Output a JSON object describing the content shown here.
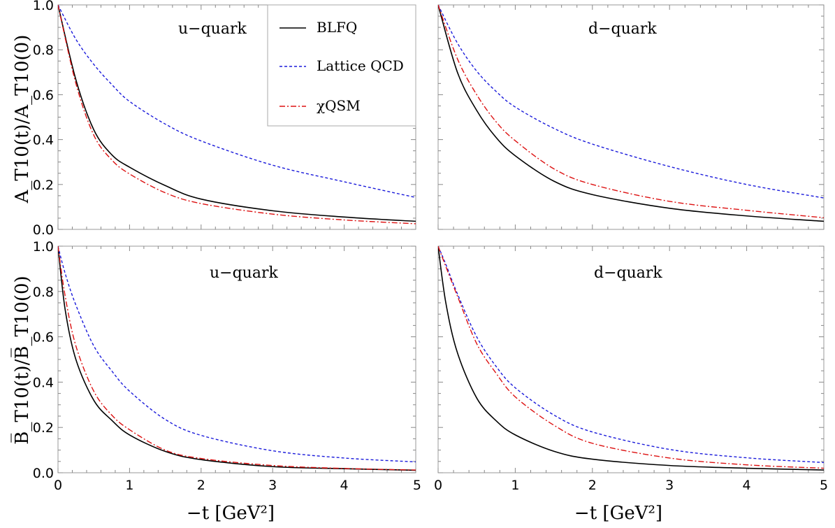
{
  "chart_data": [
    {
      "type": "line",
      "panel": "top-left",
      "annotation": "u−quark",
      "ylabel": "A_T10(t)/A_T10(0)",
      "xlim": [
        0,
        5
      ],
      "ylim": [
        0,
        1.0
      ],
      "yticks": [
        "0.0",
        "0.2",
        "0.4",
        "0.6",
        "0.8",
        "1.0"
      ],
      "xticks": [],
      "series": [
        {
          "name": "BLFQ",
          "x": [
            0,
            0.25,
            0.5,
            0.75,
            1.0,
            1.5,
            2.0,
            3.0,
            4.0,
            5.0
          ],
          "values": [
            1.0,
            0.667,
            0.444,
            0.333,
            0.277,
            0.195,
            0.135,
            0.083,
            0.055,
            0.036
          ]
        },
        {
          "name": "Lattice QCD",
          "x": [
            0,
            0.25,
            0.5,
            0.75,
            1.0,
            1.5,
            2.0,
            3.0,
            4.0,
            5.0
          ],
          "values": [
            1.0,
            0.847,
            0.735,
            0.646,
            0.57,
            0.469,
            0.394,
            0.286,
            0.212,
            0.142
          ]
        },
        {
          "name": "χQSM",
          "x": [
            0,
            0.25,
            0.5,
            0.75,
            1.0,
            1.5,
            2.0,
            3.0,
            4.0,
            5.0
          ],
          "values": [
            1.0,
            0.65,
            0.42,
            0.31,
            0.247,
            0.163,
            0.115,
            0.068,
            0.042,
            0.025
          ]
        }
      ]
    },
    {
      "type": "line",
      "panel": "top-right",
      "annotation": "d−quark",
      "xlim": [
        0,
        5
      ],
      "ylim": [
        0,
        1.0
      ],
      "yticks": [],
      "xticks": [],
      "series": [
        {
          "name": "BLFQ",
          "x": [
            0,
            0.25,
            0.5,
            0.75,
            1.0,
            1.5,
            2.0,
            3.0,
            4.0,
            5.0
          ],
          "values": [
            1.0,
            0.7,
            0.53,
            0.41,
            0.328,
            0.215,
            0.155,
            0.094,
            0.06,
            0.036
          ]
        },
        {
          "name": "Lattice QCD",
          "x": [
            0,
            0.25,
            0.5,
            0.75,
            1.0,
            1.5,
            2.0,
            3.0,
            4.0,
            5.0
          ],
          "values": [
            1.0,
            0.83,
            0.705,
            0.615,
            0.545,
            0.45,
            0.38,
            0.28,
            0.2,
            0.14
          ]
        },
        {
          "name": "χQSM",
          "x": [
            0,
            0.25,
            0.5,
            0.75,
            1.0,
            1.5,
            2.0,
            3.0,
            4.0,
            5.0
          ],
          "values": [
            1.0,
            0.76,
            0.6,
            0.48,
            0.395,
            0.27,
            0.2,
            0.125,
            0.085,
            0.052
          ]
        }
      ]
    },
    {
      "type": "line",
      "panel": "bottom-left",
      "annotation": "u−quark",
      "ylabel": "B̅_T10(t)/B̅_T10(0)",
      "xlabel": "−t [GeV²]",
      "xlim": [
        0,
        5
      ],
      "ylim": [
        0,
        1.0
      ],
      "yticks": [
        "0.0",
        "0.2",
        "0.4",
        "0.6",
        "0.8",
        "1.0"
      ],
      "xticks": [
        "0",
        "1",
        "2",
        "3",
        "4",
        "5"
      ],
      "series": [
        {
          "name": "BLFQ",
          "x": [
            0,
            0.1,
            0.25,
            0.5,
            0.75,
            1.0,
            1.5,
            2.0,
            3.0,
            4.0,
            5.0
          ],
          "values": [
            1.0,
            0.72,
            0.5,
            0.32,
            0.232,
            0.167,
            0.094,
            0.058,
            0.027,
            0.018,
            0.011
          ]
        },
        {
          "name": "Lattice QCD",
          "x": [
            0,
            0.1,
            0.25,
            0.5,
            0.75,
            1.0,
            1.5,
            2.0,
            3.0,
            4.0,
            5.0
          ],
          "values": [
            1.0,
            0.88,
            0.74,
            0.56,
            0.45,
            0.36,
            0.235,
            0.165,
            0.097,
            0.065,
            0.048
          ]
        },
        {
          "name": "χQSM",
          "x": [
            0,
            0.1,
            0.25,
            0.5,
            0.75,
            1.0,
            1.5,
            2.0,
            3.0,
            4.0,
            5.0
          ],
          "values": [
            1.0,
            0.78,
            0.56,
            0.36,
            0.255,
            0.19,
            0.1,
            0.063,
            0.032,
            0.019,
            0.012
          ]
        }
      ]
    },
    {
      "type": "line",
      "panel": "bottom-right",
      "annotation": "d−quark",
      "xlabel": "−t [GeV²]",
      "xlim": [
        0,
        5
      ],
      "ylim": [
        0,
        1.0
      ],
      "yticks": [],
      "xticks": [
        "0",
        "1",
        "2",
        "3",
        "4",
        "5"
      ],
      "series": [
        {
          "name": "BLFQ",
          "x": [
            0,
            0.1,
            0.25,
            0.5,
            0.75,
            1.0,
            1.5,
            2.0,
            3.0,
            4.0,
            5.0
          ],
          "values": [
            1.0,
            0.75,
            0.53,
            0.33,
            0.23,
            0.167,
            0.095,
            0.06,
            0.032,
            0.02,
            0.012
          ]
        },
        {
          "name": "Lattice QCD",
          "x": [
            0,
            0.1,
            0.25,
            0.5,
            0.75,
            1.0,
            1.5,
            2.0,
            3.0,
            4.0,
            5.0
          ],
          "values": [
            1.0,
            0.92,
            0.79,
            0.6,
            0.47,
            0.375,
            0.255,
            0.18,
            0.103,
            0.066,
            0.045
          ]
        },
        {
          "name": "χQSM",
          "x": [
            0,
            0.1,
            0.25,
            0.5,
            0.75,
            1.0,
            1.5,
            2.0,
            3.0,
            4.0,
            5.0
          ],
          "values": [
            1.0,
            0.91,
            0.78,
            0.57,
            0.44,
            0.335,
            0.21,
            0.13,
            0.065,
            0.035,
            0.02
          ]
        }
      ]
    }
  ],
  "legend": {
    "placement": "top-left panel, top-right",
    "items": [
      {
        "name": "BLFQ",
        "color": "#000000",
        "dash": "solid"
      },
      {
        "name": "Lattice QCD",
        "color": "#0000cc",
        "dash": "dashed"
      },
      {
        "name": "χQSM",
        "color": "#dd0000",
        "dash": "dashdot"
      }
    ]
  },
  "colors": {
    "BLFQ": "#000000",
    "Lattice QCD": "#1a1adb",
    "χQSM": "#dd1111"
  }
}
